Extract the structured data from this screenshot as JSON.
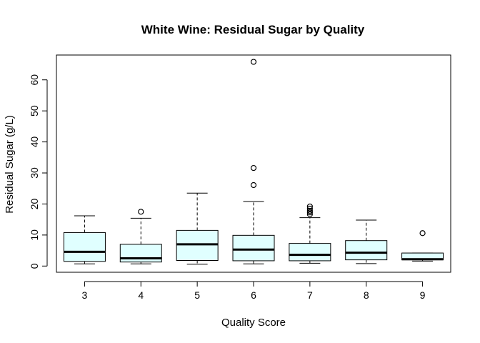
{
  "chart_data": {
    "type": "boxplot",
    "title": "White Wine: Residual Sugar by Quality",
    "xlabel": "Quality Score",
    "ylabel": "Residual Sugar (g/L)",
    "ylim": [
      -2,
      68
    ],
    "yticks": [
      0,
      10,
      20,
      30,
      40,
      50,
      60
    ],
    "box_color": "#e0ffff",
    "categories": [
      "3",
      "4",
      "5",
      "6",
      "7",
      "8",
      "9"
    ],
    "boxes": [
      {
        "category": "3",
        "whisker_low": 0.7,
        "q1": 1.5,
        "median": 4.6,
        "q3": 10.8,
        "whisker_high": 16.2,
        "outliers": []
      },
      {
        "category": "4",
        "whisker_low": 0.7,
        "q1": 1.3,
        "median": 2.5,
        "q3": 7.0,
        "whisker_high": 15.4,
        "outliers": [
          17.5
        ]
      },
      {
        "category": "5",
        "whisker_low": 0.6,
        "q1": 1.8,
        "median": 7.0,
        "q3": 11.5,
        "whisker_high": 23.5,
        "outliers": []
      },
      {
        "category": "6",
        "whisker_low": 0.7,
        "q1": 1.7,
        "median": 5.3,
        "q3": 9.9,
        "whisker_high": 20.8,
        "outliers": [
          26.1,
          31.6,
          65.8
        ]
      },
      {
        "category": "7",
        "whisker_low": 0.9,
        "q1": 1.7,
        "median": 3.6,
        "q3": 7.3,
        "whisker_high": 15.6,
        "outliers": [
          16.7,
          17.3,
          17.8,
          18.5,
          19.2
        ]
      },
      {
        "category": "8",
        "whisker_low": 0.8,
        "q1": 2.0,
        "median": 4.3,
        "q3": 8.2,
        "whisker_high": 14.8,
        "outliers": []
      },
      {
        "category": "9",
        "whisker_low": 1.6,
        "q1": 2.0,
        "median": 2.2,
        "q3": 4.2,
        "whisker_high": 4.2,
        "outliers": [
          10.6
        ]
      }
    ]
  }
}
